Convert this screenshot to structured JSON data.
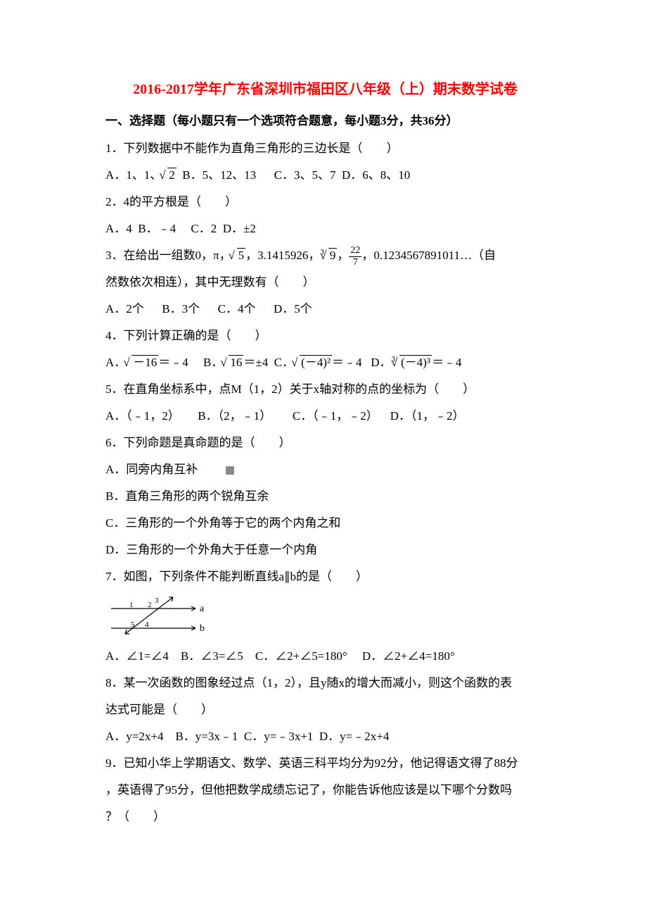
{
  "title": "2016-2017学年广东省深圳市福田区八年级（上）期末数学试卷",
  "section1": {
    "header": "一、选择题（每小题只有一个选项符合题意，每小题3分，共36分）"
  },
  "q1": {
    "text": "1．下列数据中不能作为直角三角形的三边长是（　　）",
    "optA": "A．1、1、",
    "sqrtA": "2",
    "optB": "B．5、12、13",
    "optC": "C．3、5、7",
    "optD": "D．6、8、10"
  },
  "q2": {
    "text": "2．4的平方根是（　　）",
    "optA": "A．4",
    "optB": "B．﹣4",
    "optC": "C．2",
    "optD": "D．±2"
  },
  "q3": {
    "line1a": "3．在给出一组数0，π，",
    "sqrt5": "5",
    "line1b": "，3.1415926，",
    "cbrt9": "9",
    "line1c": "，",
    "fracNum": "22",
    "fracDen": "7",
    "line1d": "，0.1234567891011…（自",
    "line2": "然数依次相连），其中无理数有（　　）",
    "optA": "A．2个",
    "optB": "B．3个",
    "optC": "C．4个",
    "optD": "D．5个"
  },
  "q4": {
    "text": "4．下列计算正确的是（　　）",
    "optA_pre": "A．",
    "sqrtNeg16": "－16",
    "optA_post": "＝﹣4",
    "optB_pre": "B．",
    "sqrt16": "16",
    "optB_post": "＝±4",
    "optC_pre": "C．",
    "sqrtNeg4sq": "(－4)²",
    "optC_post": "＝﹣4",
    "optD_pre": "D．",
    "cbrtNeg4cb": "(－4)³",
    "optD_post": "＝﹣4"
  },
  "q5": {
    "text": "5．在直角坐标系中，点M（1，2）关于x轴对称的点的坐标为（　　）",
    "optA": "A．（﹣1，2）",
    "optB": "B．（2，﹣1）",
    "optC": "C．（﹣1，﹣2）",
    "optD": "D．（1，﹣2）"
  },
  "q6": {
    "text": "6．下列命题是真命题的是（　　）",
    "optA": "A．同旁内角互补",
    "optB": "B．直角三角形的两个锐角互余",
    "optC": "C．三角形的一个外角等于它的两个内角之和",
    "optD": "D．三角形的一个外角大于任意一个内角"
  },
  "q7": {
    "text": "7．如图，下列条件不能判断直线a∥b的是（　　）",
    "optA": "A．∠1=∠4",
    "optB": "B．∠3=∠5",
    "optC": "C．∠2+∠5=180°",
    "optD": "D．∠2+∠4=180°"
  },
  "q8": {
    "line1": "8．某一次函数的图象经过点（1，2），且y随x的增大而减小，则这个函数的表",
    "line2": "达式可能是（　　）",
    "optA": "A．y=2x+4",
    "optB": "B．y=3x﹣1",
    "optC": "C．y=﹣3x+1",
    "optD": "D．y=﹣2x+4"
  },
  "q9": {
    "line1": "9．已知小华上学期语文、数学、英语三科平均分为92分，他记得语文得了88分",
    "line2": "，英语得了95分，但他把数学成绩忘记了，你能告诉他应该是以下哪个分数吗",
    "line3": "？（　　）"
  },
  "diagram7": {
    "width": 155,
    "height": 65,
    "labelA": "a",
    "labelB": "b",
    "n1": "1",
    "n2": "2",
    "n3": "3",
    "n4": "4",
    "n5": "5",
    "colors": {
      "line": "#000000",
      "text": "#000000"
    }
  }
}
